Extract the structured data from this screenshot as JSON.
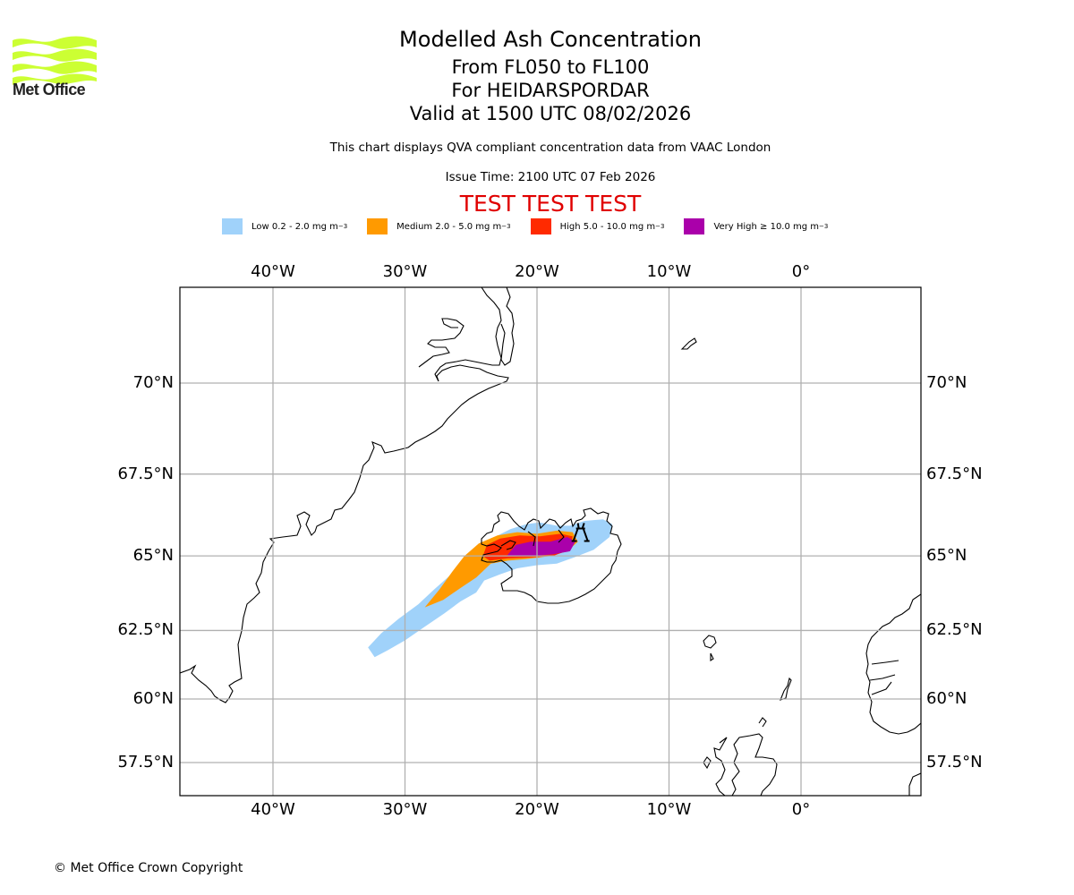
{
  "branding": {
    "logo_text": "Met Office",
    "logo_color": "#ccff33"
  },
  "header": {
    "title": "Modelled Ash Concentration",
    "level_range": "From FL050 to FL100",
    "volcano": "For HEIDARSPORDAR",
    "valid_time": "Valid at 1500 UTC 08/02/2026",
    "source_note": "This chart displays QVA compliant concentration data from VAAC London",
    "issue_time": "Issue Time: 2100 UTC 07 Feb 2026",
    "test_banner": "TEST TEST TEST"
  },
  "legend": [
    {
      "label": "Low 0.2 - 2.0 mg m",
      "unit_exp": "−3",
      "color": "#a0d2fa"
    },
    {
      "label": "Medium 2.0 - 5.0 mg m",
      "unit_exp": "−3",
      "color": "#ff9a00"
    },
    {
      "label": "High 5.0 - 10.0 mg m",
      "unit_exp": "−3",
      "color": "#ff2a00"
    },
    {
      "label": "Very High  ≥  10.0 mg m",
      "unit_exp": "−3",
      "color": "#aa00aa"
    }
  ],
  "map": {
    "extent": {
      "lon_min": -47.0,
      "lon_max": 9.2,
      "lat_min": 56.0,
      "lat_max": 72.5
    },
    "lon_ticks": [
      {
        "value": -40,
        "label": "40°W"
      },
      {
        "value": -30,
        "label": "30°W"
      },
      {
        "value": -20,
        "label": "20°W"
      },
      {
        "value": -10,
        "label": "10°W"
      },
      {
        "value": 0,
        "label": "0°"
      }
    ],
    "lat_ticks": [
      {
        "value": 70,
        "label": "70°N"
      },
      {
        "value": 67.5,
        "label": "67.5°N"
      },
      {
        "value": 65,
        "label": "65°N"
      },
      {
        "value": 62.5,
        "label": "62.5°N"
      },
      {
        "value": 60,
        "label": "60°N"
      },
      {
        "value": 57.5,
        "label": "57.5°N"
      }
    ],
    "volcano_marker": {
      "name": "HEIDARSPORDAR",
      "lon": -16.7,
      "lat": 65.7
    },
    "ash_regions": [
      {
        "level": "Low",
        "points": [
          [
            -32.8,
            61.9
          ],
          [
            -31.8,
            62.4
          ],
          [
            -30.5,
            62.9
          ],
          [
            -29.0,
            63.4
          ],
          [
            -27.8,
            63.9
          ],
          [
            -26.5,
            64.4
          ],
          [
            -25.4,
            64.9
          ],
          [
            -24.2,
            65.3
          ],
          [
            -23.2,
            65.6
          ],
          [
            -22.0,
            65.85
          ],
          [
            -20.8,
            66.0
          ],
          [
            -19.8,
            66.05
          ],
          [
            -18.5,
            65.95
          ],
          [
            -17.5,
            65.95
          ],
          [
            -16.4,
            66.1
          ],
          [
            -15.0,
            66.15
          ],
          [
            -14.3,
            66.0
          ],
          [
            -14.5,
            65.6
          ],
          [
            -15.7,
            65.2
          ],
          [
            -17.2,
            64.95
          ],
          [
            -18.5,
            64.75
          ],
          [
            -20.0,
            64.7
          ],
          [
            -21.5,
            64.6
          ],
          [
            -22.8,
            64.4
          ],
          [
            -24.0,
            64.2
          ],
          [
            -24.6,
            63.8
          ],
          [
            -25.8,
            63.5
          ],
          [
            -27.0,
            63.1
          ],
          [
            -28.6,
            62.6
          ],
          [
            -30.0,
            62.15
          ],
          [
            -31.3,
            61.8
          ],
          [
            -32.3,
            61.55
          ]
        ]
      },
      {
        "level": "Medium",
        "points": [
          [
            -28.5,
            63.3
          ],
          [
            -27.4,
            63.9
          ],
          [
            -26.4,
            64.5
          ],
          [
            -25.5,
            65.0
          ],
          [
            -24.4,
            65.4
          ],
          [
            -23.0,
            65.65
          ],
          [
            -21.5,
            65.75
          ],
          [
            -20.0,
            65.7
          ],
          [
            -18.5,
            65.8
          ],
          [
            -17.3,
            65.75
          ],
          [
            -16.9,
            65.45
          ],
          [
            -17.7,
            65.15
          ],
          [
            -19.0,
            65.0
          ],
          [
            -20.8,
            64.9
          ],
          [
            -22.2,
            64.85
          ],
          [
            -23.5,
            64.75
          ],
          [
            -24.6,
            64.3
          ],
          [
            -25.8,
            63.95
          ],
          [
            -27.1,
            63.55
          ]
        ]
      },
      {
        "level": "High",
        "points": [
          [
            -24.1,
            65.0
          ],
          [
            -23.8,
            65.35
          ],
          [
            -22.8,
            65.55
          ],
          [
            -21.3,
            65.65
          ],
          [
            -19.8,
            65.62
          ],
          [
            -18.2,
            65.7
          ],
          [
            -17.3,
            65.62
          ],
          [
            -17.5,
            65.2
          ],
          [
            -18.8,
            65.0
          ],
          [
            -20.5,
            64.95
          ],
          [
            -22.2,
            64.92
          ],
          [
            -23.6,
            64.85
          ]
        ]
      },
      {
        "level": "Very High",
        "points": [
          [
            -22.3,
            65.0
          ],
          [
            -21.6,
            65.35
          ],
          [
            -20.5,
            65.45
          ],
          [
            -19.0,
            65.45
          ],
          [
            -17.7,
            65.6
          ],
          [
            -17.1,
            65.45
          ],
          [
            -17.5,
            65.15
          ],
          [
            -18.8,
            65.05
          ],
          [
            -20.5,
            65.0
          ]
        ]
      }
    ]
  },
  "footer": {
    "copyright": "© Met Office Crown Copyright"
  }
}
